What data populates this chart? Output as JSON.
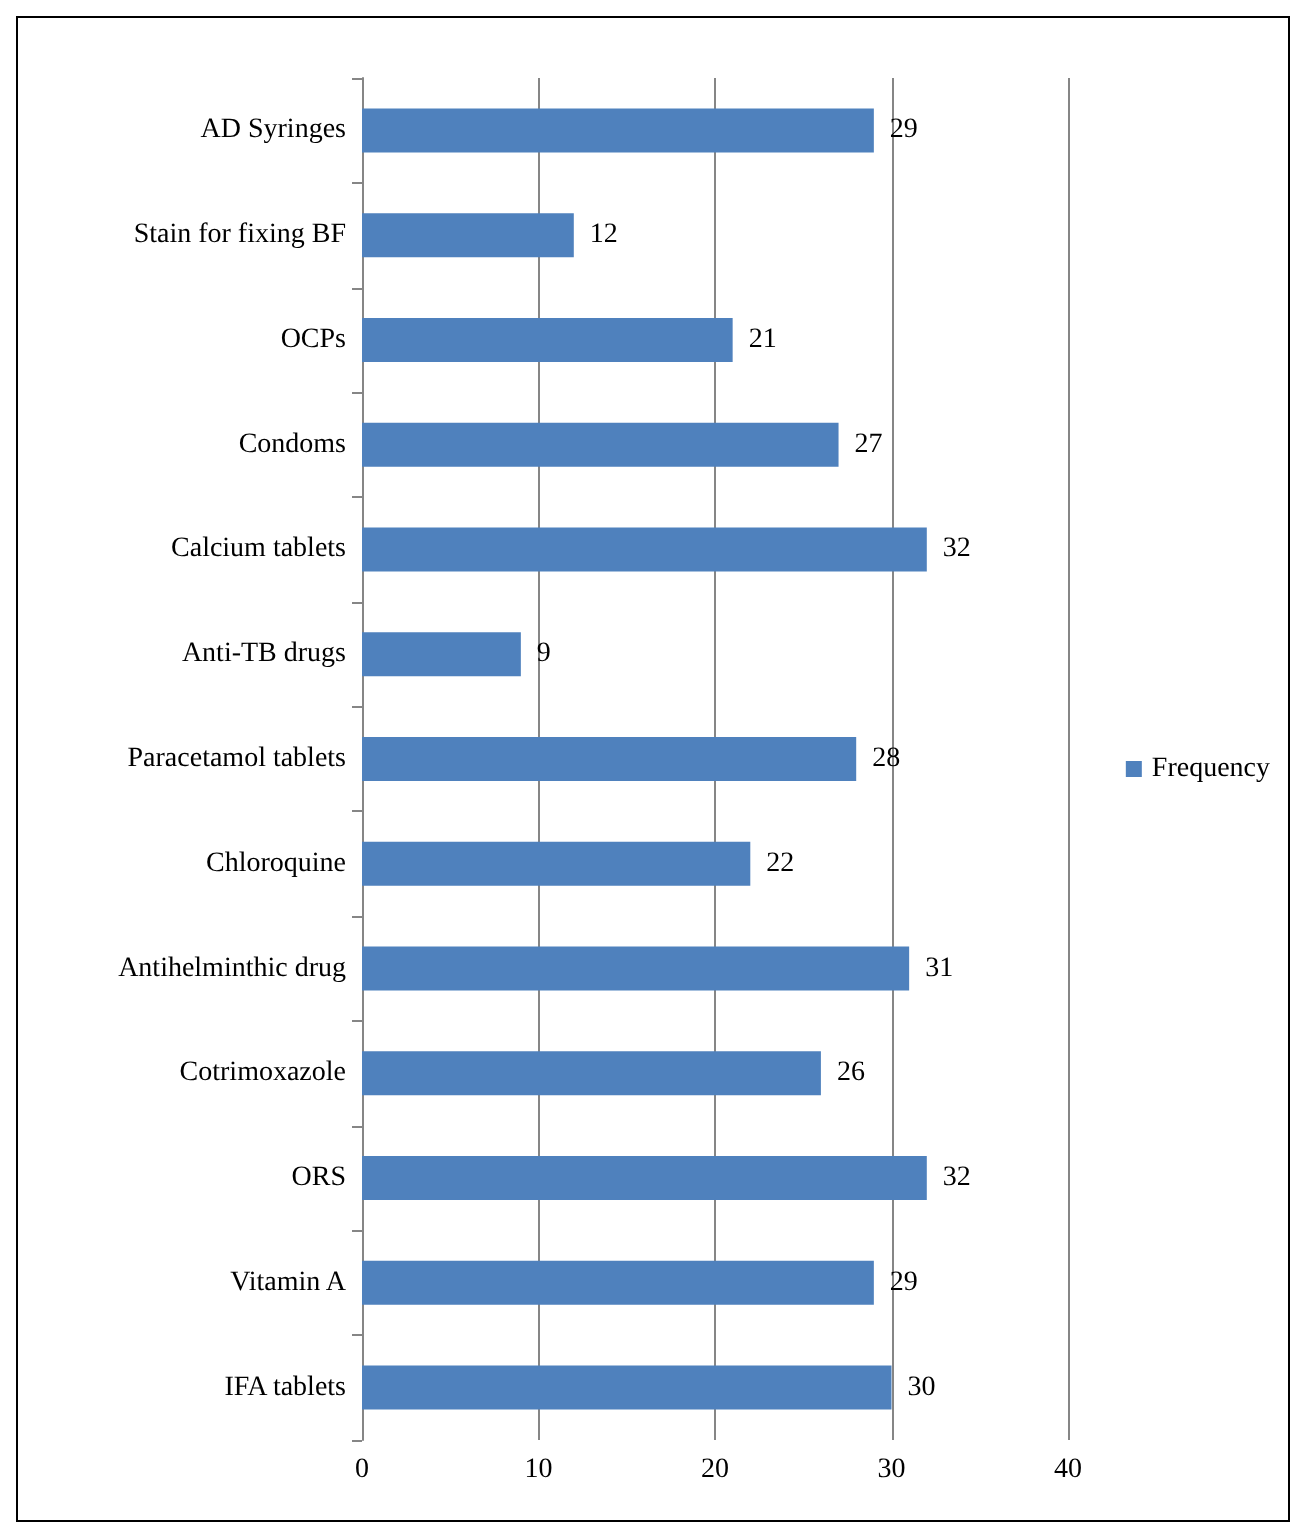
{
  "chart_data": {
    "type": "bar",
    "orientation": "horizontal",
    "categories": [
      "AD Syringes",
      "Stain for fixing BF",
      "OCPs",
      "Condoms",
      "Calcium tablets",
      "Anti-TB drugs",
      "Paracetamol tablets",
      "Chloroquine",
      "Antihelminthic drug",
      "Cotrimoxazole",
      "ORS",
      "Vitamin A",
      "IFA tablets"
    ],
    "series": [
      {
        "name": "Frequency",
        "color": "#4f81bd",
        "values": [
          29,
          12,
          21,
          27,
          32,
          9,
          28,
          22,
          31,
          26,
          32,
          29,
          30
        ]
      }
    ],
    "xlim": [
      0,
      40
    ],
    "xticks": [
      0,
      10,
      20,
      30,
      40
    ],
    "grid": "x",
    "legend": "right",
    "data_labels": true
  }
}
